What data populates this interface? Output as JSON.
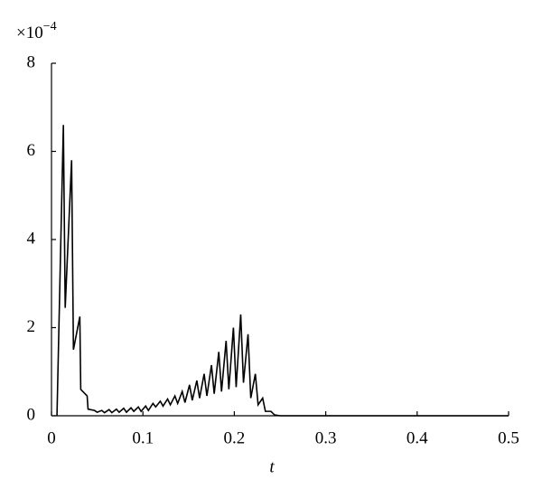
{
  "chart_data": {
    "type": "line",
    "y_scale_label": {
      "base": "×10",
      "exponent": "−4"
    },
    "x_label": "t",
    "xlim": [
      0,
      0.5
    ],
    "xticks": [
      0,
      0.1,
      0.2,
      0.3,
      0.4,
      0.5
    ],
    "ylim": [
      0,
      8
    ],
    "yticks": [
      0,
      2,
      4,
      6,
      8
    ],
    "series": [
      {
        "color": "#000000",
        "x": [
          0.006,
          0.013,
          0.015,
          0.022,
          0.024,
          0.031,
          0.032,
          0.039,
          0.04,
          0.047,
          0.05,
          0.055,
          0.058,
          0.063,
          0.066,
          0.071,
          0.074,
          0.079,
          0.082,
          0.087,
          0.09,
          0.095,
          0.098,
          0.103,
          0.106,
          0.111,
          0.114,
          0.119,
          0.122,
          0.127,
          0.13,
          0.135,
          0.138,
          0.143,
          0.146,
          0.151,
          0.154,
          0.159,
          0.162,
          0.167,
          0.17,
          0.175,
          0.178,
          0.183,
          0.186,
          0.191,
          0.194,
          0.199,
          0.202,
          0.207,
          0.21,
          0.215,
          0.218,
          0.223,
          0.226,
          0.231,
          0.234,
          0.24,
          0.244,
          0.25,
          0.5
        ],
        "values": [
          0,
          6.6,
          2.45,
          5.8,
          1.5,
          2.25,
          0.6,
          0.45,
          0.15,
          0.12,
          0.08,
          0.12,
          0.07,
          0.14,
          0.07,
          0.15,
          0.08,
          0.17,
          0.08,
          0.18,
          0.1,
          0.2,
          0.1,
          0.22,
          0.12,
          0.28,
          0.2,
          0.33,
          0.22,
          0.38,
          0.25,
          0.45,
          0.28,
          0.55,
          0.3,
          0.7,
          0.35,
          0.8,
          0.4,
          0.95,
          0.45,
          1.15,
          0.5,
          1.45,
          0.55,
          1.7,
          0.6,
          2.0,
          0.65,
          2.3,
          0.75,
          1.85,
          0.4,
          0.95,
          0.25,
          0.4,
          0.1,
          0.1,
          0.02,
          0,
          0
        ]
      }
    ]
  }
}
